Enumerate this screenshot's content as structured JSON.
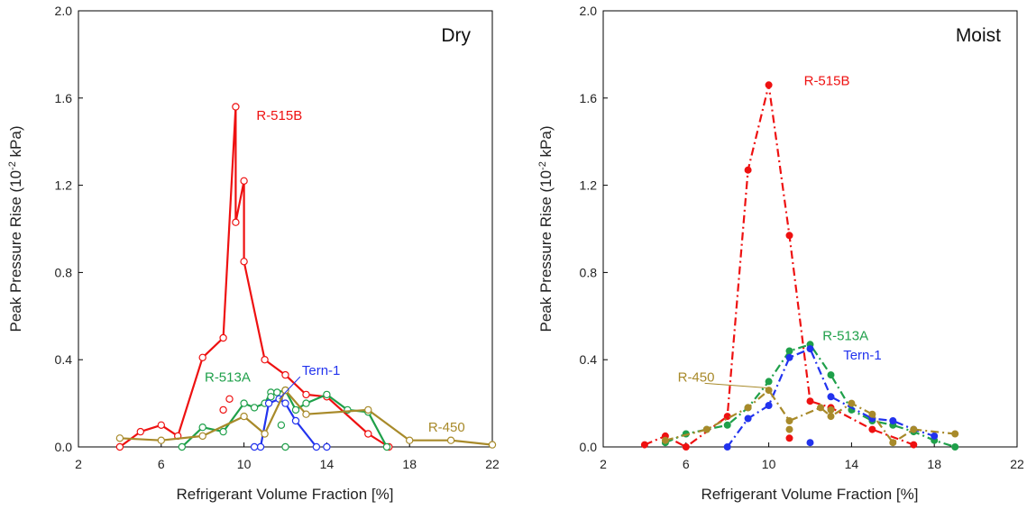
{
  "chart_data": [
    {
      "type": "line",
      "panel": "dry",
      "tag": "Dry",
      "xlabel": "Refrigerant Volume Fraction [%]",
      "ylabel_main": "Peak Pressure Rise  (10",
      "ylabel_sup": "-2",
      "ylabel_end": " kPa)",
      "xlim": [
        2,
        22
      ],
      "ylim": [
        0,
        2.0
      ],
      "xticks": [
        2,
        6,
        10,
        14,
        18,
        22
      ],
      "yticks": [
        "0.0",
        "0.4",
        "0.8",
        "1.2",
        "1.6",
        "2.0"
      ],
      "marker": "open-circle",
      "line_style": "solid",
      "series": [
        {
          "name": "R-515B",
          "color": "#ee1111",
          "line": [
            [
              4,
              0.0
            ],
            [
              5,
              0.07
            ],
            [
              6,
              0.1
            ],
            [
              6.8,
              0.05
            ],
            [
              8,
              0.41
            ],
            [
              9,
              0.5
            ],
            [
              9.6,
              1.56
            ],
            [
              9.6,
              1.03
            ],
            [
              10,
              1.22
            ],
            [
              10,
              0.85
            ],
            [
              11,
              0.4
            ],
            [
              12,
              0.33
            ],
            [
              13,
              0.24
            ],
            [
              14,
              0.23
            ],
            [
              16,
              0.06
            ],
            [
              17,
              0.0
            ]
          ],
          "extra_points": [
            [
              9,
              0.17
            ],
            [
              9.3,
              0.22
            ]
          ]
        },
        {
          "name": "R-513A",
          "color": "#1fa04a",
          "line": [
            [
              7,
              0.0
            ],
            [
              8,
              0.09
            ],
            [
              9,
              0.07
            ],
            [
              10,
              0.2
            ],
            [
              10.5,
              0.18
            ],
            [
              11,
              0.2
            ],
            [
              11.3,
              0.25
            ],
            [
              11.6,
              0.25
            ],
            [
              12,
              0.26
            ],
            [
              12.5,
              0.17
            ],
            [
              13,
              0.2
            ],
            [
              14,
              0.24
            ],
            [
              15,
              0.17
            ],
            [
              16,
              0.16
            ],
            [
              16.9,
              0.0
            ]
          ],
          "extra_points": [
            [
              11.3,
              0.23
            ],
            [
              11.8,
              0.1
            ],
            [
              12,
              0.0
            ]
          ]
        },
        {
          "name": "Tern-1",
          "color": "#2233ee",
          "line": [
            [
              10.8,
              0.0
            ],
            [
              11.2,
              0.2
            ],
            [
              11.7,
              0.22
            ],
            [
              12,
              0.2
            ],
            [
              12.5,
              0.12
            ],
            [
              13.5,
              0.0
            ]
          ],
          "extra_points": [
            [
              10.5,
              0.0
            ],
            [
              14,
              0.0
            ]
          ]
        },
        {
          "name": "R-450",
          "color": "#a88a2a",
          "line": [
            [
              4,
              0.04
            ],
            [
              6,
              0.03
            ],
            [
              8,
              0.05
            ],
            [
              10,
              0.14
            ],
            [
              11,
              0.06
            ],
            [
              12,
              0.26
            ],
            [
              13,
              0.15
            ],
            [
              16,
              0.17
            ],
            [
              18,
              0.03
            ],
            [
              20,
              0.03
            ],
            [
              22,
              0.01
            ]
          ],
          "extra_points": []
        }
      ],
      "labels": [
        {
          "text": "R-515B",
          "series": "R-515B",
          "x": 10.6,
          "y": 1.5
        },
        {
          "text": "R-513A",
          "series": "R-513A",
          "x": 8.1,
          "y": 0.3
        },
        {
          "text": "Tern-1",
          "series": "Tern-1",
          "x": 12.8,
          "y": 0.33,
          "leader_to": [
            11.7,
            0.22
          ]
        },
        {
          "text": "R-450",
          "series": "R-450",
          "x": 18.9,
          "y": 0.07
        }
      ]
    },
    {
      "type": "line",
      "panel": "moist",
      "tag": "Moist",
      "xlabel": "Refrigerant Volume Fraction [%]",
      "ylabel_main": "Peak Pressure Rise  (10",
      "ylabel_sup": "-2",
      "ylabel_end": " kPa)",
      "xlim": [
        2,
        22
      ],
      "ylim": [
        0,
        2.0
      ],
      "xticks": [
        2,
        6,
        10,
        14,
        18,
        22
      ],
      "yticks": [
        "0.0",
        "0.4",
        "0.8",
        "1.2",
        "1.6",
        "2.0"
      ],
      "marker": "filled-circle",
      "line_style": "dash-dot",
      "series": [
        {
          "name": "R-515B",
          "color": "#ee1111",
          "line": [
            [
              4,
              0.01
            ],
            [
              5,
              0.05
            ],
            [
              6,
              0.0
            ],
            [
              8,
              0.14
            ],
            [
              9,
              1.27
            ],
            [
              10,
              1.66
            ],
            [
              11,
              0.97
            ],
            [
              12,
              0.21
            ],
            [
              13,
              0.18
            ],
            [
              15,
              0.08
            ],
            [
              17,
              0.01
            ]
          ],
          "extra_points": [
            [
              11,
              0.04
            ]
          ]
        },
        {
          "name": "R-513A",
          "color": "#1fa04a",
          "line": [
            [
              5,
              0.02
            ],
            [
              6,
              0.06
            ],
            [
              7,
              0.08
            ],
            [
              8,
              0.1
            ],
            [
              9,
              0.18
            ],
            [
              10,
              0.3
            ],
            [
              11,
              0.44
            ],
            [
              12,
              0.47
            ],
            [
              13,
              0.33
            ],
            [
              14,
              0.17
            ],
            [
              15,
              0.12
            ],
            [
              16,
              0.1
            ],
            [
              17,
              0.07
            ],
            [
              18,
              0.03
            ],
            [
              19,
              0.0
            ]
          ],
          "extra_points": []
        },
        {
          "name": "Tern-1",
          "color": "#2233ee",
          "line": [
            [
              8,
              0.0
            ],
            [
              9,
              0.13
            ],
            [
              10,
              0.19
            ],
            [
              11,
              0.41
            ],
            [
              12,
              0.45
            ],
            [
              13,
              0.23
            ],
            [
              15,
              0.13
            ],
            [
              16,
              0.12
            ],
            [
              17,
              0.08
            ],
            [
              18,
              0.05
            ]
          ],
          "extra_points": [
            [
              12,
              0.02
            ]
          ]
        },
        {
          "name": "R-450",
          "color": "#a88a2a",
          "line": [
            [
              5,
              0.03
            ],
            [
              7,
              0.08
            ],
            [
              9,
              0.18
            ],
            [
              10,
              0.26
            ],
            [
              11,
              0.12
            ],
            [
              12.5,
              0.18
            ],
            [
              13,
              0.14
            ],
            [
              14,
              0.2
            ],
            [
              15,
              0.15
            ],
            [
              16,
              0.02
            ],
            [
              17,
              0.08
            ],
            [
              19,
              0.06
            ]
          ],
          "extra_points": [
            [
              11,
              0.08
            ],
            [
              13,
              0.17
            ]
          ]
        }
      ],
      "labels": [
        {
          "text": "R-515B",
          "series": "R-515B",
          "x": 11.7,
          "y": 1.66
        },
        {
          "text": "R-513A",
          "series": "R-513A",
          "x": 12.6,
          "y": 0.49
        },
        {
          "text": "Tern-1",
          "series": "Tern-1",
          "x": 13.6,
          "y": 0.4
        },
        {
          "text": "R-450",
          "series": "R-450",
          "x": 5.6,
          "y": 0.3,
          "leader_to": [
            10,
            0.27
          ]
        }
      ]
    }
  ]
}
